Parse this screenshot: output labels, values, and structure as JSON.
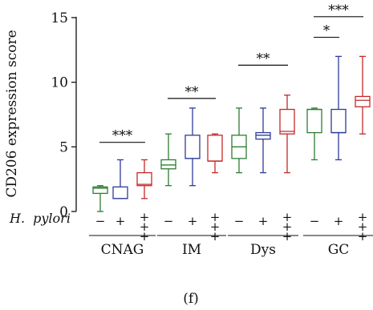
{
  "chart_data": {
    "type": "boxplot",
    "ylabel": "CD206 expression score",
    "ylim": [
      0,
      15
    ],
    "yticks": [
      0,
      5,
      10,
      15
    ],
    "panel_label": "(f)",
    "row_label_prefix": "H.",
    "row_label_italic": "pylori",
    "series_colors": [
      "#2e7d32",
      "#2f3b98",
      "#c62828"
    ],
    "hp_labels": [
      "−",
      "+",
      "+\n+\n+"
    ],
    "groups": [
      {
        "name": "CNAG",
        "boxes": [
          {
            "min": 0,
            "q1": 1.4,
            "median": 1.8,
            "q3": 1.9,
            "max": 2
          },
          {
            "min": 1,
            "q1": 1.0,
            "median": 1.0,
            "q3": 1.9,
            "max": 4
          },
          {
            "min": 1,
            "q1": 2.0,
            "median": 2.1,
            "q3": 3.0,
            "max": 4
          }
        ]
      },
      {
        "name": "IM",
        "boxes": [
          {
            "min": 2,
            "q1": 3.3,
            "median": 3.6,
            "q3": 4.0,
            "max": 6
          },
          {
            "min": 2,
            "q1": 4.1,
            "median": 4.1,
            "q3": 5.9,
            "max": 8
          },
          {
            "min": 3,
            "q1": 3.9,
            "median": 3.9,
            "q3": 5.9,
            "max": 6
          }
        ]
      },
      {
        "name": "Dys",
        "boxes": [
          {
            "min": 3,
            "q1": 4.1,
            "median": 5.0,
            "q3": 5.9,
            "max": 8
          },
          {
            "min": 3,
            "q1": 5.6,
            "median": 5.9,
            "q3": 6.1,
            "max": 8
          },
          {
            "min": 3,
            "q1": 6.0,
            "median": 6.2,
            "q3": 7.9,
            "max": 9
          }
        ]
      },
      {
        "name": "GC",
        "boxes": [
          {
            "min": 4,
            "q1": 6.1,
            "median": 7.9,
            "q3": 7.9,
            "max": 8
          },
          {
            "min": 4,
            "q1": 6.1,
            "median": 6.1,
            "q3": 7.9,
            "max": 12
          },
          {
            "min": 6,
            "q1": 8.1,
            "median": 8.6,
            "q3": 8.9,
            "max": 12
          }
        ]
      }
    ],
    "significance": [
      {
        "label": "***",
        "from_box": 0,
        "to_box": 2,
        "y": 10.4
      },
      {
        "label": "**",
        "from_box": 3,
        "to_box": 5,
        "y": 17.0
      },
      {
        "label": "**",
        "from_box": 6,
        "to_box": 8,
        "y": 22.0
      },
      {
        "label": "*",
        "from_box": 9,
        "to_box": 10,
        "y": 26.2
      },
      {
        "label": "***",
        "from_box": 9,
        "to_box": 11,
        "y": 29.3
      }
    ]
  }
}
